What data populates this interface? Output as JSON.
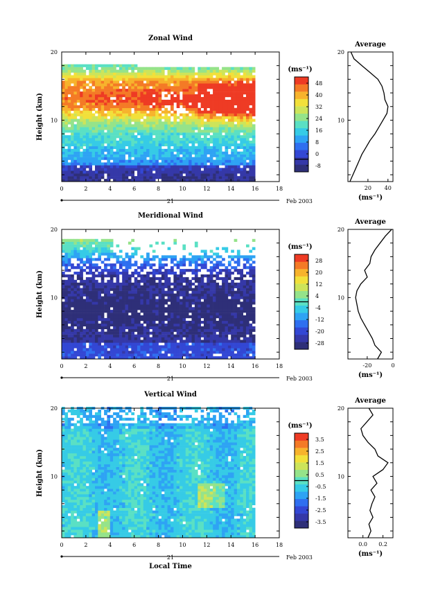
{
  "shared": {
    "xlabel": "Local Time",
    "ylabel": "Height (km)",
    "date_day": "21",
    "date_month": "Feb 2003",
    "avg_title": "Average",
    "unit": "(ms⁻¹)",
    "x_ticks": [
      "0",
      "2",
      "4",
      "6",
      "8",
      "10",
      "12",
      "14",
      "16",
      "18"
    ],
    "y_ticks": [
      "20",
      "10"
    ]
  },
  "colors": {
    "palette": [
      "#2e2f78",
      "#3538a8",
      "#3347d4",
      "#2f6ff0",
      "#2ea3f4",
      "#36cbe6",
      "#5ae0c4",
      "#95e38a",
      "#cde45a",
      "#f2e03a",
      "#f7b32c",
      "#f47a26",
      "#ee3b24"
    ],
    "missing": "#ffffff"
  },
  "chart_data": [
    {
      "type": "heatmap",
      "title": "Zonal Wind",
      "x_range": [
        0,
        18
      ],
      "y_range": [
        1,
        20
      ],
      "data_x_extent": [
        0,
        16
      ],
      "colorbar_ticks": [
        "48",
        "40",
        "32",
        "24",
        "16",
        "8",
        "0",
        "-8"
      ],
      "colorbar_range": [
        -8,
        52
      ],
      "profile": {
        "title": "Average",
        "x_ticks": [
          "20",
          "40"
        ],
        "x_range": [
          0,
          45
        ],
        "heights": [
          1,
          2,
          3,
          4,
          5,
          6,
          7,
          8,
          9,
          10,
          11,
          12,
          13,
          14,
          15,
          16,
          17,
          18,
          19,
          20
        ],
        "values": [
          2,
          5,
          8,
          11,
          14,
          18,
          22,
          27,
          31,
          35,
          39,
          40,
          37,
          36,
          34,
          30,
          22,
          14,
          6,
          3
        ]
      }
    },
    {
      "type": "heatmap",
      "title": "Meridional Wind",
      "x_range": [
        0,
        18
      ],
      "y_range": [
        1,
        20
      ],
      "data_x_extent": [
        0,
        16
      ],
      "colorbar_ticks": [
        "28",
        "20",
        "12",
        "4",
        "-4",
        "-12",
        "-20",
        "-28"
      ],
      "colorbar_range": [
        -30,
        30
      ],
      "profile": {
        "title": "Average",
        "x_ticks": [
          "-20",
          "0"
        ],
        "x_range": [
          -35,
          0
        ],
        "heights": [
          1,
          2,
          3,
          4,
          5,
          6,
          7,
          8,
          9,
          10,
          11,
          12,
          13,
          14,
          15,
          16,
          17,
          18,
          19,
          20
        ],
        "values": [
          -12,
          -9,
          -14,
          -16,
          -19,
          -22,
          -25,
          -27,
          -28,
          -29,
          -28,
          -25,
          -20,
          -22,
          -18,
          -17,
          -14,
          -10,
          -6,
          -1
        ]
      }
    },
    {
      "type": "heatmap",
      "title": "Vertical Wind",
      "x_range": [
        0,
        18
      ],
      "y_range": [
        1,
        20
      ],
      "data_x_extent": [
        0,
        16
      ],
      "colorbar_ticks": [
        "3.5",
        "2.5",
        "1.5",
        "0.5",
        "-0.5",
        "-1.5",
        "-2.5",
        "-3.5"
      ],
      "colorbar_range": [
        -4,
        4
      ],
      "profile": {
        "title": "Average",
        "x_ticks": [
          "0.0",
          "0.2"
        ],
        "x_range": [
          -0.15,
          0.3
        ],
        "heights": [
          1,
          2,
          3,
          4,
          5,
          6,
          7,
          8,
          9,
          10,
          11,
          12,
          13,
          14,
          15,
          16,
          17,
          18,
          19,
          20
        ],
        "values": [
          0.05,
          0.08,
          0.06,
          0.1,
          0.07,
          0.09,
          0.12,
          0.08,
          0.14,
          0.1,
          0.2,
          0.25,
          0.15,
          0.12,
          0.05,
          0.0,
          -0.02,
          0.04,
          0.1,
          0.06
        ]
      }
    }
  ]
}
